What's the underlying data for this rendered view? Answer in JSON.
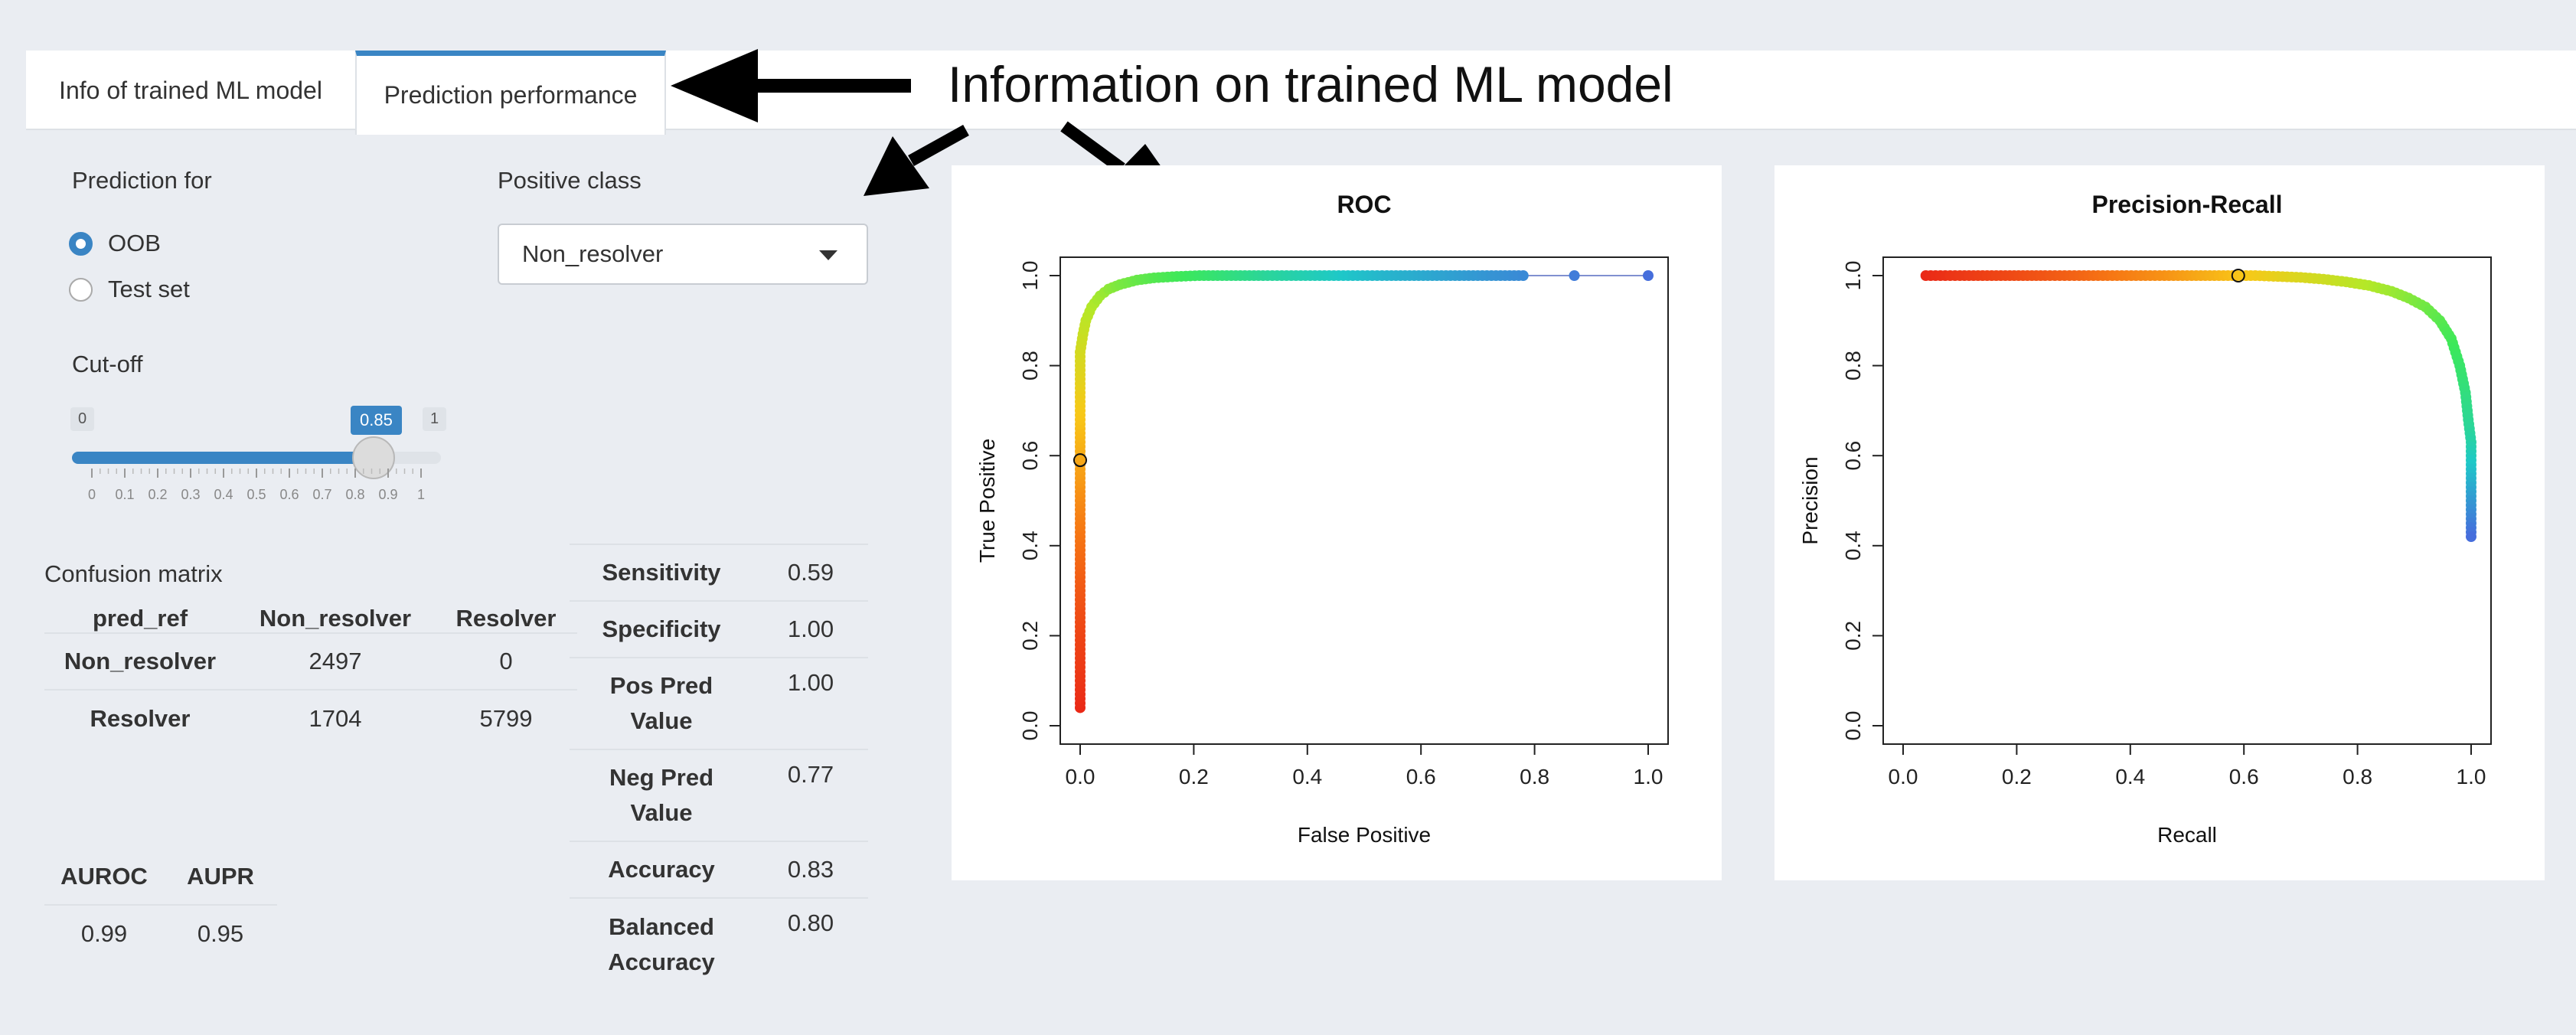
{
  "tabs": {
    "info": "Info of trained ML model",
    "performance": "Prediction performance"
  },
  "annotation": "Information on trained ML model",
  "prediction_for": {
    "label": "Prediction for",
    "options": [
      "OOB",
      "Test set"
    ],
    "selected": "OOB"
  },
  "positive_class": {
    "label": "Positive class",
    "value": "Non_resolver"
  },
  "cutoff": {
    "label": "Cut-off",
    "min": "0",
    "max": "1",
    "value": "0.85",
    "ticks": [
      "0",
      "0.1",
      "0.2",
      "0.3",
      "0.4",
      "0.5",
      "0.6",
      "0.7",
      "0.8",
      "0.9",
      "1"
    ]
  },
  "confusion": {
    "title": "Confusion matrix",
    "headers": [
      "pred_ref",
      "Non_resolver",
      "Resolver"
    ],
    "rows": [
      [
        "Non_resolver",
        "2497",
        "0"
      ],
      [
        "Resolver",
        "1704",
        "5799"
      ]
    ]
  },
  "auc": {
    "headers": [
      "AUROC",
      "AUPR"
    ],
    "values": [
      "0.99",
      "0.95"
    ]
  },
  "metrics": [
    {
      "name": "Sensitivity",
      "value": "0.59"
    },
    {
      "name": "Specificity",
      "value": "1.00"
    },
    {
      "name": "Pos Pred Value",
      "value": "1.00"
    },
    {
      "name": "Neg Pred Value",
      "value": "0.77"
    },
    {
      "name": "Accuracy",
      "value": "0.83"
    },
    {
      "name": "Balanced Accuracy",
      "value": "0.80"
    }
  ],
  "chart_data": [
    {
      "type": "line",
      "title": "ROC",
      "xlabel": "False Positive",
      "ylabel": "True Positive",
      "xlim": [
        0,
        1
      ],
      "ylim": [
        0,
        1
      ],
      "xticks": [
        "0.0",
        "0.2",
        "0.4",
        "0.6",
        "0.8",
        "1.0"
      ],
      "yticks": [
        "0.0",
        "0.2",
        "0.4",
        "0.6",
        "0.8",
        "1.0"
      ],
      "x": [
        0,
        0,
        0,
        0,
        0,
        0,
        0,
        0,
        0,
        0,
        0,
        0,
        0,
        0,
        0,
        0,
        0,
        0.005,
        0.01,
        0.02,
        0.035,
        0.05,
        0.07,
        0.1,
        0.13,
        0.17,
        0.21,
        0.25,
        0.29,
        0.33,
        0.38,
        0.43,
        0.48,
        0.54,
        0.62,
        0.7,
        0.78,
        0.87,
        1.0
      ],
      "y": [
        0.04,
        0.1,
        0.19,
        0.26,
        0.32,
        0.37,
        0.42,
        0.47,
        0.51,
        0.55,
        0.59,
        0.63,
        0.67,
        0.71,
        0.75,
        0.79,
        0.83,
        0.87,
        0.9,
        0.93,
        0.955,
        0.97,
        0.98,
        0.99,
        0.995,
        0.998,
        1,
        1,
        1,
        1,
        1,
        1,
        1,
        1,
        1,
        1,
        1,
        1,
        1
      ],
      "marker_point": [
        0,
        0.59
      ]
    },
    {
      "type": "line",
      "title": "Precision-Recall",
      "xlabel": "Recall",
      "ylabel": "Precision",
      "xlim": [
        0,
        1
      ],
      "ylim": [
        0,
        1
      ],
      "xticks": [
        "0.0",
        "0.2",
        "0.4",
        "0.6",
        "0.8",
        "1.0"
      ],
      "yticks": [
        "0.0",
        "0.2",
        "0.4",
        "0.6",
        "0.8",
        "1.0"
      ],
      "x": [
        0.04,
        0.1,
        0.18,
        0.25,
        0.31,
        0.36,
        0.41,
        0.46,
        0.5,
        0.54,
        0.58,
        0.62,
        0.66,
        0.7,
        0.74,
        0.78,
        0.82,
        0.86,
        0.89,
        0.92,
        0.945,
        0.965,
        0.98,
        0.99,
        0.995,
        1,
        1,
        1,
        1,
        1,
        1,
        1,
        1
      ],
      "y": [
        1,
        1,
        1,
        1,
        1,
        1,
        1,
        1,
        1,
        1,
        1,
        1,
        0.998,
        0.996,
        0.992,
        0.986,
        0.978,
        0.965,
        0.95,
        0.93,
        0.9,
        0.86,
        0.8,
        0.74,
        0.68,
        0.63,
        0.6,
        0.57,
        0.54,
        0.51,
        0.48,
        0.45,
        0.42
      ],
      "marker_point": [
        0.59,
        1.0
      ]
    }
  ]
}
